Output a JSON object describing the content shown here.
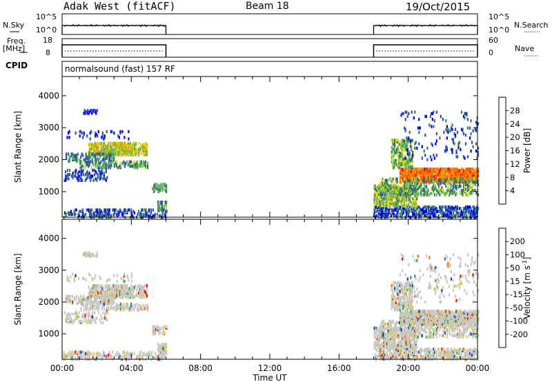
{
  "header": {
    "station": "Adak West (fitACF)",
    "beam": "Beam 18",
    "date": "19/Oct/2015"
  },
  "panels": {
    "nsky": {
      "label": "N.Sky",
      "right_label": "N.Search",
      "left_ticks": [
        "10^5",
        "10^0"
      ],
      "right_ticks": [
        "10^5",
        "10^0"
      ]
    },
    "freq": {
      "label_line1": "Freq.",
      "label_line2": "[MHz]",
      "right_label": "Nave",
      "left_ticks": [
        "18",
        "8"
      ],
      "right_ticks": [
        "60",
        "0"
      ]
    },
    "cpid": {
      "label": "CPID",
      "program": "normalsound (fast) 157 RF"
    }
  },
  "chart_data": [
    {
      "type": "heatmap",
      "name": "power",
      "ylabel": "Slant Range [km]",
      "ylim": [
        200,
        4600
      ],
      "yticks": [
        1000,
        2000,
        3000,
        4000
      ],
      "xlim": [
        0,
        24
      ],
      "colorbar": {
        "label": "Power [dB]",
        "ticks": [
          "4",
          "8",
          "12",
          "16",
          "20",
          "24",
          "28"
        ],
        "colors": [
          "#0000ff",
          "#2b4fc8",
          "#3a7a5a",
          "#5fb85f",
          "#d8d800",
          "#f0a000",
          "#ff6000",
          "#ff0000"
        ]
      },
      "data_windows_hours": [
        [
          0,
          6
        ],
        [
          18,
          24
        ]
      ]
    },
    {
      "type": "heatmap",
      "name": "velocity",
      "ylabel": "Slant Range [km]",
      "ylim": [
        200,
        4600
      ],
      "yticks": [
        1000,
        2000,
        3000,
        4000
      ],
      "xlim": [
        0,
        24
      ],
      "xlabel": "Time UT",
      "xticks": [
        "00:00",
        "04:00",
        "08:00",
        "12:00",
        "16:00",
        "20:00",
        "00:00"
      ],
      "colorbar": {
        "label": "Velocity [m s",
        "label_sup": "-1",
        "label_end": "]",
        "ticks": [
          "200",
          "100",
          "50",
          "15",
          "-15",
          "-50",
          "-100",
          "-200"
        ],
        "colors": [
          "#1e3cc8",
          "#2f8a8a",
          "#3da03d",
          "#7cd04a",
          "#c8c8be",
          "#e6d200",
          "#f0a000",
          "#ff6a00",
          "#ff0000"
        ]
      }
    }
  ]
}
